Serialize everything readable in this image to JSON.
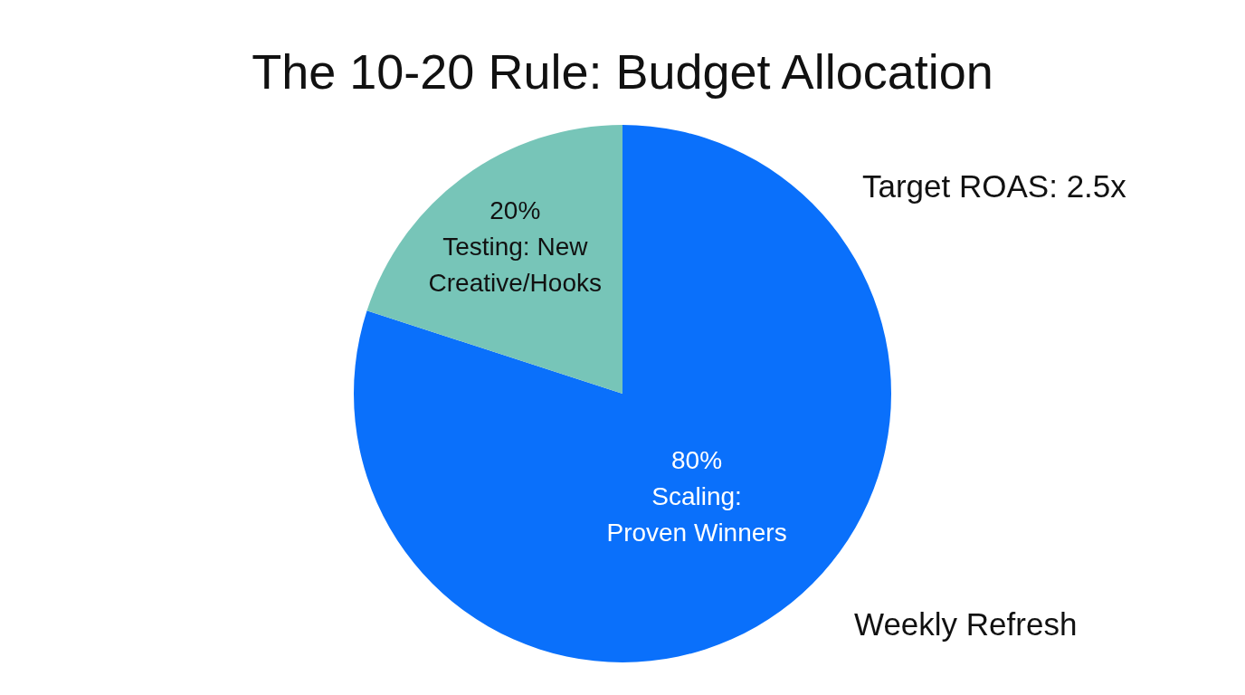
{
  "chart_data": {
    "type": "pie",
    "title": "The 10-20 Rule: Budget Allocation",
    "categories": [
      "Scaling: Proven Winners",
      "Testing: New Creative/Hooks"
    ],
    "values": [
      80,
      20
    ],
    "colors": [
      "#0a70fb",
      "#77c5b8"
    ],
    "value_labels": [
      "80%",
      "20%"
    ],
    "annotations": [
      "Target ROAS: 2.5x",
      "Weekly Refresh"
    ]
  }
}
